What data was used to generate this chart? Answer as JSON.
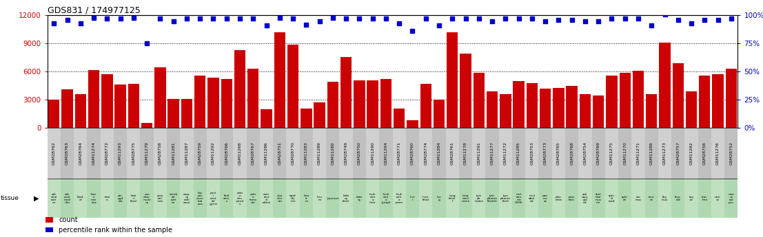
{
  "title": "GDS831 / 174977125",
  "samples": [
    "GSM28762",
    "GSM28763",
    "GSM28764",
    "GSM11274",
    "GSM28772",
    "GSM11293",
    "GSM28775",
    "GSM11279",
    "GSM28758",
    "GSM11281",
    "GSM11287",
    "GSM28759",
    "GSM11292",
    "GSM28766",
    "GSM11268",
    "GSM28767",
    "GSM11286",
    "GSM28751",
    "GSM28770",
    "GSM11283",
    "GSM11289",
    "GSM11280",
    "GSM28749",
    "GSM28750",
    "GSM11290",
    "GSM11294",
    "GSM28771",
    "GSM28760",
    "GSM28774",
    "GSM11284",
    "GSM28761",
    "GSM11278",
    "GSM11291",
    "GSM11277",
    "GSM11272",
    "GSM11285",
    "GSM28753",
    "GSM28773",
    "GSM28765",
    "GSM28768",
    "GSM28754",
    "GSM28769",
    "GSM11275",
    "GSM11270",
    "GSM11271",
    "GSM11288",
    "GSM11273",
    "GSM28757",
    "GSM11282",
    "GSM28756",
    "GSM11276",
    "GSM28752"
  ],
  "counts": [
    3050,
    4100,
    3600,
    6200,
    5700,
    4600,
    4700,
    500,
    6500,
    3100,
    3100,
    5600,
    5400,
    5200,
    8300,
    6300,
    2000,
    10200,
    8900,
    2100,
    2700,
    4900,
    7600,
    5100,
    5100,
    5200,
    2100,
    800,
    4700,
    3000,
    10200,
    7900,
    5900,
    3900,
    3600,
    5000,
    4800,
    4200,
    4300,
    4500,
    3600,
    3500,
    5600,
    5900,
    6100,
    3600,
    9100,
    6900,
    3900,
    5600,
    5700,
    6300
  ],
  "percentile_ranks": [
    93,
    96,
    93,
    98,
    97,
    97,
    98,
    75,
    97,
    95,
    97,
    97,
    97,
    97,
    97,
    97,
    91,
    98,
    97,
    92,
    95,
    98,
    97,
    97,
    97,
    97,
    93,
    86,
    97,
    91,
    97,
    97,
    97,
    95,
    97,
    97,
    97,
    95,
    96,
    96,
    95,
    95,
    97,
    97,
    97,
    91,
    101,
    96,
    93,
    96,
    96,
    97
  ],
  "tissue_labels": [
    "adr\nenal\ncort\nex",
    "adr\nenal\nmed\nulla",
    "blad\ner",
    "bon\ne\nmar\nrow",
    "brai\nn",
    "am\nygd\nala",
    "brai\nn\nfetal",
    "cau\ndate\nnucle\nus",
    "cere\nbel\nlum",
    "cereb\nral\ncort\nex",
    "corp\nus\ncalli\nosun",
    "hip\npoc\nocen\ntral\npus",
    "post\ni\ncent\nral\ngyrus",
    "thal\namu\ns",
    "colo\nn\ndes\npend\ns",
    "colo\nn\ntrans\nver",
    "colo\nrect\nal\nadem",
    "duo\nden\num",
    "epid\nidy\nmis",
    "hea\nrt\nm",
    "lieu\nm",
    "jejunum",
    "kidn\ney\nfetal",
    "kidn\ney",
    "leuk\nemi\na\nchro",
    "leuk\nemi\na\nlymph",
    "leuk\nemi\na\nprom",
    "live\nr",
    "liver\nfetal",
    "lun\ng",
    "lung\nfetal\nf",
    "lung\ncarci\nnoma",
    "lym\nph\nnodes",
    "lym\nphoma\nBurkitt",
    "lym\nphoma\nBurk",
    "mel\nano\nma\nG336",
    "misl\nabel\ned",
    "pan\ncre\nas",
    "plac\nenta",
    "pros\ntate",
    "sali\nvary\ngla\nnd",
    "skel\netal\nmus\ncle",
    "spin\nal\ncord",
    "sple\nen",
    "sto\nmac",
    "test\nes",
    "thy\nmus",
    "thyr\noid",
    "ton\nsil",
    "trac\nhea",
    "uter\nus",
    "uter\nus\ncor\npus"
  ],
  "ylim": [
    0,
    12000
  ],
  "yticks_left": [
    0,
    3000,
    6000,
    9000,
    12000
  ],
  "yticks_right": [
    0,
    25,
    50,
    75,
    100
  ],
  "bar_color": "#cc0000",
  "dot_color": "#0000cc",
  "sample_label_bg_even": "#d0d0d0",
  "sample_label_bg_odd": "#c0c0c0",
  "tissue_bg_even": "#c0e0c0",
  "tissue_bg_odd": "#b0d8b0"
}
